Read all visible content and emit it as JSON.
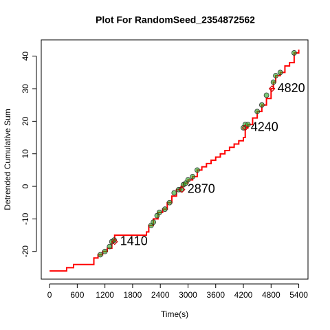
{
  "chart_data": {
    "type": "line",
    "title": "Plot For RandomSeed_2354872562",
    "xlabel": "Time(s)",
    "ylabel": "Detrended Cumulative Sum",
    "xlim": [
      -180,
      5600
    ],
    "ylim": [
      -28.5,
      45
    ],
    "xticks": [
      0,
      600,
      1200,
      1800,
      2400,
      3000,
      3600,
      4200,
      4800,
      5400
    ],
    "yticks": [
      -20,
      -10,
      0,
      10,
      20,
      30,
      40
    ],
    "series": [
      {
        "color": "#ff0000",
        "style": "step",
        "x": [
          0,
          370,
          520,
          960,
          1050,
          1150,
          1250,
          1350,
          1410,
          2100,
          2150,
          2250,
          2350,
          2450,
          2550,
          2650,
          2750,
          2850,
          2900,
          3000,
          3100,
          3200,
          3300,
          3400,
          3500,
          3600,
          3700,
          3800,
          3900,
          4000,
          4100,
          4200,
          4240,
          4300,
          4400,
          4500,
          4600,
          4700,
          4800,
          4850,
          4900,
          5000,
          5100,
          5200,
          5300,
          5400
        ],
        "values": [
          -26,
          -25,
          -24,
          -22,
          -21,
          -20,
          -19,
          -17,
          -15,
          -14,
          -12,
          -10,
          -8,
          -7,
          -5,
          -3,
          -1,
          0,
          1,
          2,
          3,
          5,
          6,
          7,
          8,
          9,
          10,
          11,
          12,
          13,
          14,
          15,
          18,
          19,
          21,
          23,
          25,
          27,
          30,
          32,
          34,
          35,
          37,
          38,
          41,
          42
        ]
      },
      {
        "color": "#22aa22",
        "style": "circle",
        "x": [
          1100,
          1200,
          1300,
          1350,
          1400,
          2200,
          2250,
          2330,
          2380,
          2500,
          2600,
          2700,
          2800,
          2850,
          2900,
          2950,
          3000,
          3100,
          3200,
          4200,
          4240,
          4300,
          4500,
          4600,
          4700,
          4850,
          4900,
          5000,
          5300
        ],
        "values": [
          -21,
          -20,
          -18.5,
          -17,
          -16.5,
          -12,
          -11,
          -9,
          -8,
          -7,
          -5,
          -2,
          -1,
          -1,
          0.5,
          1,
          2,
          3,
          5,
          18,
          19,
          19,
          23,
          25,
          28,
          32,
          34,
          35,
          41
        ]
      },
      {
        "color": "#cc0000",
        "style": "diamond",
        "x": [
          1410,
          2870,
          4240,
          4820
        ],
        "values": [
          -17,
          -1,
          18,
          30
        ]
      }
    ],
    "annotations": [
      {
        "text": "1410",
        "x": 1410,
        "y": -17,
        "color": "#0000ee"
      },
      {
        "text": "2870",
        "x": 2870,
        "y": -1,
        "color": "#0000ee"
      },
      {
        "text": "4240",
        "x": 4240,
        "y": 18,
        "color": "#0000ee"
      },
      {
        "text": "4820",
        "x": 4820,
        "y": 30,
        "color": "#0000ee"
      }
    ]
  }
}
